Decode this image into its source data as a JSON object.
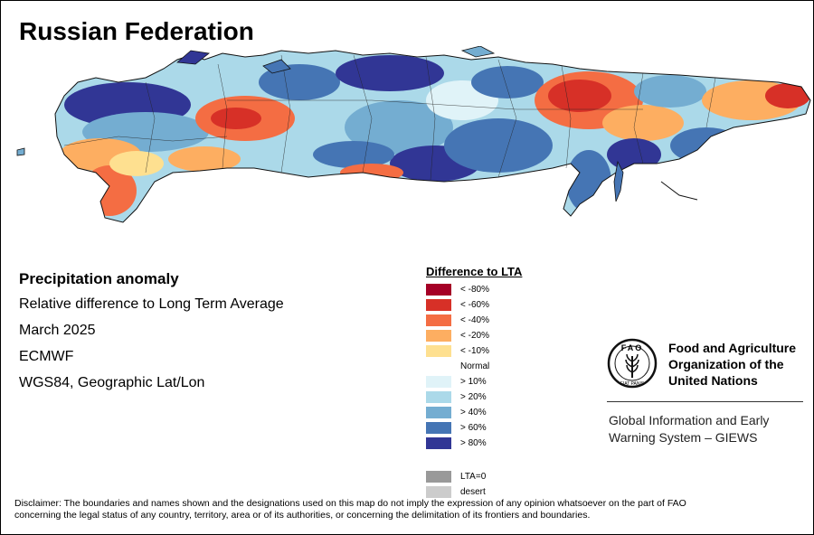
{
  "map_title": "Russian Federation",
  "info": {
    "heading": "Precipitation anomaly",
    "subtitle": "Relative difference to Long Term Average",
    "period": "March 2025",
    "source": "ECMWF",
    "projection": "WGS84, Geographic Lat/Lon"
  },
  "legend": {
    "title": "Difference to LTA",
    "items": [
      {
        "label": "< -80%",
        "color": "#a50026"
      },
      {
        "label": "< -60%",
        "color": "#d73027"
      },
      {
        "label": "< -40%",
        "color": "#f46d43"
      },
      {
        "label": "< -20%",
        "color": "#fdae61"
      },
      {
        "label": "< -10%",
        "color": "#fee090"
      },
      {
        "label": "Normal",
        "color": ""
      },
      {
        "label": "> 10%",
        "color": "#e0f3f8"
      },
      {
        "label": "> 20%",
        "color": "#abd9e9"
      },
      {
        "label": "> 40%",
        "color": "#74add1"
      },
      {
        "label": "> 60%",
        "color": "#4575b4"
      },
      {
        "label": "> 80%",
        "color": "#313695"
      }
    ],
    "extra": [
      {
        "label": "LTA=0",
        "color": "#999999"
      },
      {
        "label": "desert",
        "color": "#cccccc"
      }
    ]
  },
  "logo": {
    "org_line1": "Food and Agriculture",
    "org_line2": "Organization of the",
    "org_line3": "United Nations",
    "emblem_letters": "FAO",
    "emblem_motto": "FIAT PANIS",
    "giews_line1": "Global Information and Early",
    "giews_line2": "Warning System – GIEWS"
  },
  "disclaimer_line1": "Disclaimer: The boundaries and names shown and the designations used on this map do not imply the expression of any opinion whatsoever on the part of FAO",
  "disclaimer_line2": "concerning the legal status of any country, territory, area or of its authorities, or concerning the delimitation of its frontiers and boundaries."
}
